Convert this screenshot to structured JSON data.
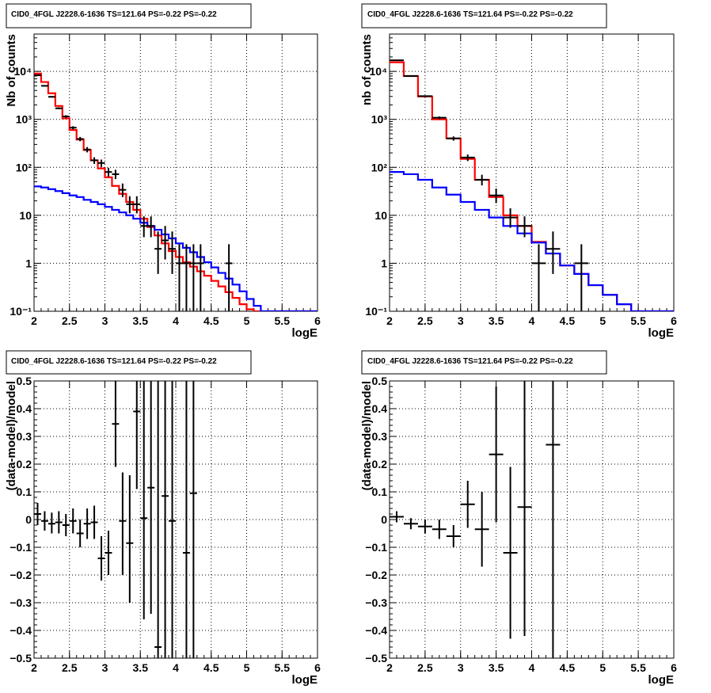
{
  "chart_data": [
    {
      "type": "line",
      "title": "CID0_4FGL J2228.6-1636 TS=121.64 PS=-0.22 PS=-0.22",
      "xlabel": "logE",
      "ylabel": "Nb of counts",
      "xlim": [
        2,
        6
      ],
      "ylim": [
        0.1,
        60000
      ],
      "log_y": true,
      "grid": true,
      "x_ticks": [
        2,
        2.5,
        3,
        3.5,
        4,
        4.5,
        5,
        5.5,
        6
      ],
      "x_tick_labels": [
        "2",
        "2.5",
        "3",
        "3.5",
        "4",
        "4.5",
        "5",
        "5.5",
        "6"
      ],
      "y_ticks": [
        0.1,
        1,
        10,
        100,
        1000,
        10000
      ],
      "y_tick_labels": [
        "10⁻¹",
        "1",
        "10",
        "10²",
        "10³",
        "10⁴"
      ],
      "bin_edges": [
        2.0,
        2.1,
        2.2,
        2.3,
        2.4,
        2.5,
        2.6,
        2.7,
        2.8,
        2.9,
        3.0,
        3.1,
        3.2,
        3.3,
        3.4,
        3.5,
        3.6,
        3.7,
        3.8,
        3.9,
        4.0,
        4.1,
        4.2,
        4.3,
        4.4,
        4.5,
        4.6,
        4.7,
        4.8,
        4.9,
        5.0,
        5.1,
        5.2,
        5.3,
        5.4,
        5.5,
        5.6,
        5.7,
        5.8,
        5.9,
        6.0
      ],
      "series": [
        {
          "color": "#ff0000",
          "style": "step",
          "values": [
            9000,
            6000,
            3500,
            1900,
            1050,
            600,
            380,
            230,
            140,
            95,
            62,
            41,
            28,
            19,
            13,
            8.5,
            5.7,
            3.8,
            2.6,
            1.8,
            1.35,
            1.05,
            0.85,
            0.68,
            0.55,
            0.43,
            0.33,
            0.25,
            0.19,
            0.14,
            0.11,
            0.1,
            0.1,
            0.1,
            0.1,
            0.1,
            0.1,
            0.1,
            0.1,
            0.1
          ]
        },
        {
          "color": "#0000ff",
          "style": "step",
          "values": [
            40,
            38,
            35,
            32,
            29,
            26,
            24,
            21,
            19,
            17,
            15,
            13,
            11.5,
            10,
            8.5,
            7,
            6,
            5,
            4,
            3.3,
            2.6,
            2.1,
            1.7,
            1.35,
            1.05,
            0.82,
            0.63,
            0.48,
            0.36,
            0.26,
            0.18,
            0.13,
            0.1,
            0.1,
            0.1,
            0.1,
            0.1,
            0.1,
            0.1,
            0.1
          ]
        }
      ],
      "points": [
        {
          "x": 2.05,
          "y": 8300,
          "ylo": 8120,
          "yhi": 8480
        },
        {
          "x": 2.15,
          "y": 5000,
          "ylo": 4860,
          "yhi": 5140
        },
        {
          "x": 2.25,
          "y": 2950,
          "ylo": 2840,
          "yhi": 3060
        },
        {
          "x": 2.35,
          "y": 1700,
          "ylo": 1620,
          "yhi": 1780
        },
        {
          "x": 2.45,
          "y": 1150,
          "ylo": 1080,
          "yhi": 1220
        },
        {
          "x": 2.55,
          "y": 670,
          "ylo": 620,
          "yhi": 720
        },
        {
          "x": 2.65,
          "y": 390,
          "ylo": 350,
          "yhi": 430
        },
        {
          "x": 2.75,
          "y": 235,
          "ylo": 205,
          "yhi": 265
        },
        {
          "x": 2.85,
          "y": 140,
          "ylo": 118,
          "yhi": 162
        },
        {
          "x": 2.95,
          "y": 123,
          "ylo": 102,
          "yhi": 145
        },
        {
          "x": 3.05,
          "y": 80,
          "ylo": 64,
          "yhi": 98
        },
        {
          "x": 3.15,
          "y": 72,
          "ylo": 57,
          "yhi": 89
        },
        {
          "x": 3.25,
          "y": 34,
          "ylo": 24,
          "yhi": 46
        },
        {
          "x": 3.35,
          "y": 17,
          "ylo": 11,
          "yhi": 25
        },
        {
          "x": 3.45,
          "y": 17,
          "ylo": 11,
          "yhi": 25
        },
        {
          "x": 3.55,
          "y": 6,
          "ylo": 3.5,
          "yhi": 9.5
        },
        {
          "x": 3.65,
          "y": 6,
          "ylo": 3.5,
          "yhi": 9.5
        },
        {
          "x": 3.75,
          "y": 2,
          "ylo": 0.6,
          "yhi": 4.6
        },
        {
          "x": 3.85,
          "y": 3,
          "ylo": 1.2,
          "yhi": 6
        },
        {
          "x": 3.95,
          "y": 2,
          "ylo": 0.6,
          "yhi": 4.6
        },
        {
          "x": 4.05,
          "y": 1,
          "ylo": 0.1,
          "yhi": 2.5
        },
        {
          "x": 4.15,
          "y": 1,
          "ylo": 0.1,
          "yhi": 2.5
        },
        {
          "x": 4.25,
          "y": 1,
          "ylo": 0.1,
          "yhi": 2.5
        },
        {
          "x": 4.35,
          "y": 1,
          "ylo": 0.1,
          "yhi": 2.5
        },
        {
          "x": 4.75,
          "y": 1,
          "ylo": 0.1,
          "yhi": 2.5
        }
      ],
      "point_halfwidth": 0.05
    },
    {
      "type": "line",
      "title": "CID0_4FGL J2228.6-1636 TS=121.64 PS=-0.22 PS=-0.22",
      "xlabel": "logE",
      "ylabel": "nb of counts",
      "xlim": [
        2,
        6
      ],
      "ylim": [
        0.1,
        60000
      ],
      "log_y": true,
      "grid": true,
      "x_ticks": [
        2,
        2.5,
        3,
        3.5,
        4,
        4.5,
        5,
        5.5,
        6
      ],
      "x_tick_labels": [
        "2",
        "2.5",
        "3",
        "3.5",
        "4",
        "4.5",
        "5",
        "5.5",
        "6"
      ],
      "y_ticks": [
        0.1,
        1,
        10,
        100,
        1000,
        10000
      ],
      "y_tick_labels": [
        "10⁻¹",
        "1",
        "10",
        "10²",
        "10³",
        "10⁴"
      ],
      "bin_edges": [
        2.0,
        2.2,
        2.4,
        2.6,
        2.8,
        3.0,
        3.2,
        3.4,
        3.6,
        3.8,
        4.0,
        4.2,
        4.4,
        4.6,
        4.8,
        5.0,
        5.2,
        5.4,
        5.6,
        5.8,
        6.0
      ],
      "series": [
        {
          "color": "#ff0000",
          "style": "step",
          "values": [
            15500,
            8000,
            3000,
            1000,
            400,
            150,
            55,
            24,
            10,
            6,
            2.8,
            1.6,
            0.9,
            0.6,
            0.35,
            0.22,
            0.14,
            0.1,
            0.1,
            0.1
          ]
        },
        {
          "color": "#0000ff",
          "style": "step",
          "values": [
            80,
            72,
            55,
            38,
            27,
            19,
            13,
            9,
            6,
            4.2,
            2.7,
            1.6,
            0.9,
            0.6,
            0.35,
            0.22,
            0.14,
            0.1,
            0.1,
            0.1
          ]
        }
      ],
      "points": [
        {
          "x": 2.1,
          "y": 17000,
          "ylo": 16700,
          "yhi": 17300
        },
        {
          "x": 2.3,
          "y": 8000,
          "ylo": 7800,
          "yhi": 8200
        },
        {
          "x": 2.5,
          "y": 3050,
          "ylo": 2940,
          "yhi": 3160
        },
        {
          "x": 2.7,
          "y": 1080,
          "ylo": 1010,
          "yhi": 1150
        },
        {
          "x": 2.9,
          "y": 400,
          "ylo": 360,
          "yhi": 440
        },
        {
          "x": 3.1,
          "y": 160,
          "ylo": 135,
          "yhi": 185
        },
        {
          "x": 3.3,
          "y": 55,
          "ylo": 42,
          "yhi": 70
        },
        {
          "x": 3.5,
          "y": 26,
          "ylo": 18,
          "yhi": 36
        },
        {
          "x": 3.7,
          "y": 9,
          "ylo": 5.5,
          "yhi": 14
        },
        {
          "x": 3.9,
          "y": 6,
          "ylo": 3.5,
          "yhi": 9.5
        },
        {
          "x": 4.1,
          "y": 1,
          "ylo": 0.1,
          "yhi": 2.5
        },
        {
          "x": 4.3,
          "y": 2,
          "ylo": 0.6,
          "yhi": 4.6
        },
        {
          "x": 4.7,
          "y": 1,
          "ylo": 0.1,
          "yhi": 2.5
        }
      ],
      "point_halfwidth": 0.1
    },
    {
      "type": "scatter",
      "title": "CID0_4FGL J2228.6-1636 TS=121.64 PS=-0.22 PS=-0.22",
      "xlabel": "logE",
      "ylabel": "(data-model)/model",
      "xlim": [
        2,
        6
      ],
      "ylim": [
        -0.5,
        0.5
      ],
      "log_y": false,
      "grid": true,
      "x_ticks": [
        2,
        2.5,
        3,
        3.5,
        4,
        4.5,
        5,
        5.5,
        6
      ],
      "x_tick_labels": [
        "2",
        "2.5",
        "3",
        "3.5",
        "4",
        "4.5",
        "5",
        "5.5",
        "6"
      ],
      "y_ticks": [
        -0.5,
        -0.4,
        -0.3,
        -0.2,
        -0.1,
        0,
        0.1,
        0.2,
        0.3,
        0.4,
        0.5
      ],
      "y_tick_labels": [
        "−0.5",
        "−0.4",
        "−0.3",
        "−0.2",
        "−0.1",
        "0",
        "0.1",
        "0.2",
        "0.3",
        "0.4",
        "0.5"
      ],
      "points": [
        {
          "x": 2.05,
          "y": 0.02,
          "ylo": -0.02,
          "yhi": 0.06
        },
        {
          "x": 2.15,
          "y": -0.005,
          "ylo": -0.04,
          "yhi": 0.03
        },
        {
          "x": 2.25,
          "y": -0.015,
          "ylo": -0.05,
          "yhi": 0.025
        },
        {
          "x": 2.35,
          "y": -0.01,
          "ylo": -0.05,
          "yhi": 0.03
        },
        {
          "x": 2.45,
          "y": -0.02,
          "ylo": -0.06,
          "yhi": 0.02
        },
        {
          "x": 2.55,
          "y": -0.005,
          "ylo": -0.05,
          "yhi": 0.04
        },
        {
          "x": 2.65,
          "y": -0.05,
          "ylo": -0.1,
          "yhi": 0.0
        },
        {
          "x": 2.75,
          "y": -0.015,
          "ylo": -0.07,
          "yhi": 0.04
        },
        {
          "x": 2.85,
          "y": -0.01,
          "ylo": -0.07,
          "yhi": 0.05
        },
        {
          "x": 2.95,
          "y": -0.14,
          "ylo": -0.22,
          "yhi": -0.06
        },
        {
          "x": 3.05,
          "y": -0.12,
          "ylo": -0.2,
          "yhi": -0.04
        },
        {
          "x": 3.15,
          "y": 0.345,
          "ylo": 0.19,
          "yhi": 0.5
        },
        {
          "x": 3.25,
          "y": -0.005,
          "ylo": -0.2,
          "yhi": 0.17
        },
        {
          "x": 3.35,
          "y": -0.085,
          "ylo": -0.3,
          "yhi": 0.16
        },
        {
          "x": 3.45,
          "y": 0.39,
          "ylo": 0.11,
          "yhi": 0.5
        },
        {
          "x": 3.55,
          "y": 0.005,
          "ylo": -0.36,
          "yhi": 0.5
        },
        {
          "x": 3.65,
          "y": 0.115,
          "ylo": -0.34,
          "yhi": 0.5
        },
        {
          "x": 3.75,
          "y": -0.46,
          "ylo": -0.5,
          "yhi": 0.5
        },
        {
          "x": 3.85,
          "y": 0.085,
          "ylo": -0.5,
          "yhi": 0.5
        },
        {
          "x": 3.95,
          "y": -0.005,
          "ylo": -0.5,
          "yhi": 0.5
        },
        {
          "x": 4.15,
          "y": -0.12,
          "ylo": -0.5,
          "yhi": 0.5
        },
        {
          "x": 4.25,
          "y": 0.095,
          "ylo": -0.5,
          "yhi": 0.5
        }
      ],
      "point_halfwidth": 0.05
    },
    {
      "type": "scatter",
      "title": "CID0_4FGL J2228.6-1636 TS=121.64 PS=-0.22 PS=-0.22",
      "xlabel": "logE",
      "ylabel": "(data-model)/model",
      "xlim": [
        2,
        6
      ],
      "ylim": [
        -0.5,
        0.5
      ],
      "log_y": false,
      "grid": true,
      "x_ticks": [
        2,
        2.5,
        3,
        3.5,
        4,
        4.5,
        5,
        5.5,
        6
      ],
      "x_tick_labels": [
        "2",
        "2.5",
        "3",
        "3.5",
        "4",
        "4.5",
        "5",
        "5.5",
        "6"
      ],
      "y_ticks": [
        -0.5,
        -0.4,
        -0.3,
        -0.2,
        -0.1,
        0,
        0.1,
        0.2,
        0.3,
        0.4,
        0.5
      ],
      "y_tick_labels": [
        "−0.5",
        "−0.4",
        "−0.3",
        "−0.2",
        "−0.1",
        "0",
        "0.1",
        "0.2",
        "0.3",
        "0.4",
        "0.5"
      ],
      "points": [
        {
          "x": 2.1,
          "y": 0.01,
          "ylo": -0.01,
          "yhi": 0.03
        },
        {
          "x": 2.3,
          "y": -0.015,
          "ylo": -0.035,
          "yhi": 0.005
        },
        {
          "x": 2.5,
          "y": -0.025,
          "ylo": -0.05,
          "yhi": 0.0
        },
        {
          "x": 2.7,
          "y": -0.035,
          "ylo": -0.07,
          "yhi": 0.0
        },
        {
          "x": 2.9,
          "y": -0.06,
          "ylo": -0.1,
          "yhi": -0.02
        },
        {
          "x": 3.1,
          "y": 0.055,
          "ylo": -0.03,
          "yhi": 0.14
        },
        {
          "x": 3.3,
          "y": -0.035,
          "ylo": -0.17,
          "yhi": 0.1
        },
        {
          "x": 3.5,
          "y": 0.235,
          "ylo": -0.01,
          "yhi": 0.48
        },
        {
          "x": 3.7,
          "y": -0.12,
          "ylo": -0.43,
          "yhi": 0.19
        },
        {
          "x": 3.9,
          "y": 0.045,
          "ylo": -0.42,
          "yhi": 0.5
        },
        {
          "x": 4.3,
          "y": 0.27,
          "ylo": -0.5,
          "yhi": 0.5
        }
      ],
      "point_halfwidth": 0.1
    }
  ]
}
